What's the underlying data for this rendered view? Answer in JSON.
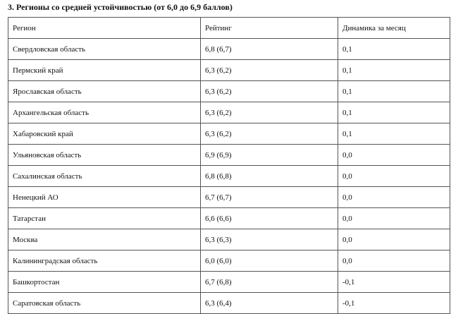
{
  "title": "3. Регионы со средней устойчивостью (от 6,0 до 6,9 баллов)",
  "table": {
    "headers": [
      "Регион",
      "Рейтинг",
      "Динамика за месяц"
    ],
    "rows": [
      [
        "Свердловская область",
        "6,8 (6,7)",
        "0,1"
      ],
      [
        "Пермский край",
        "6,3 (6,2)",
        "0,1"
      ],
      [
        "Ярославская область",
        "6,3 (6,2)",
        "0,1"
      ],
      [
        "Архангельская область",
        "6,3 (6,2)",
        "0,1"
      ],
      [
        "Хабаровский край",
        "6,3 (6,2)",
        "0,1"
      ],
      [
        "Ульяновская область",
        "6,9 (6,9)",
        "0,0"
      ],
      [
        "Сахалинская область",
        "6,8 (6,8)",
        "0,0"
      ],
      [
        "Ненецкий АО",
        "6,7 (6,7)",
        "0,0"
      ],
      [
        "Татарстан",
        "6,6 (6,6)",
        "0,0"
      ],
      [
        "Москва",
        "6,3 (6,3)",
        "0,0"
      ],
      [
        "Калининградская область",
        "6,0 (6,0)",
        "0,0"
      ],
      [
        "Башкортостан",
        "6,7 (6,8)",
        "-0,1"
      ],
      [
        "Саратовская область",
        "6,3 (6,4)",
        "-0,1"
      ]
    ]
  }
}
